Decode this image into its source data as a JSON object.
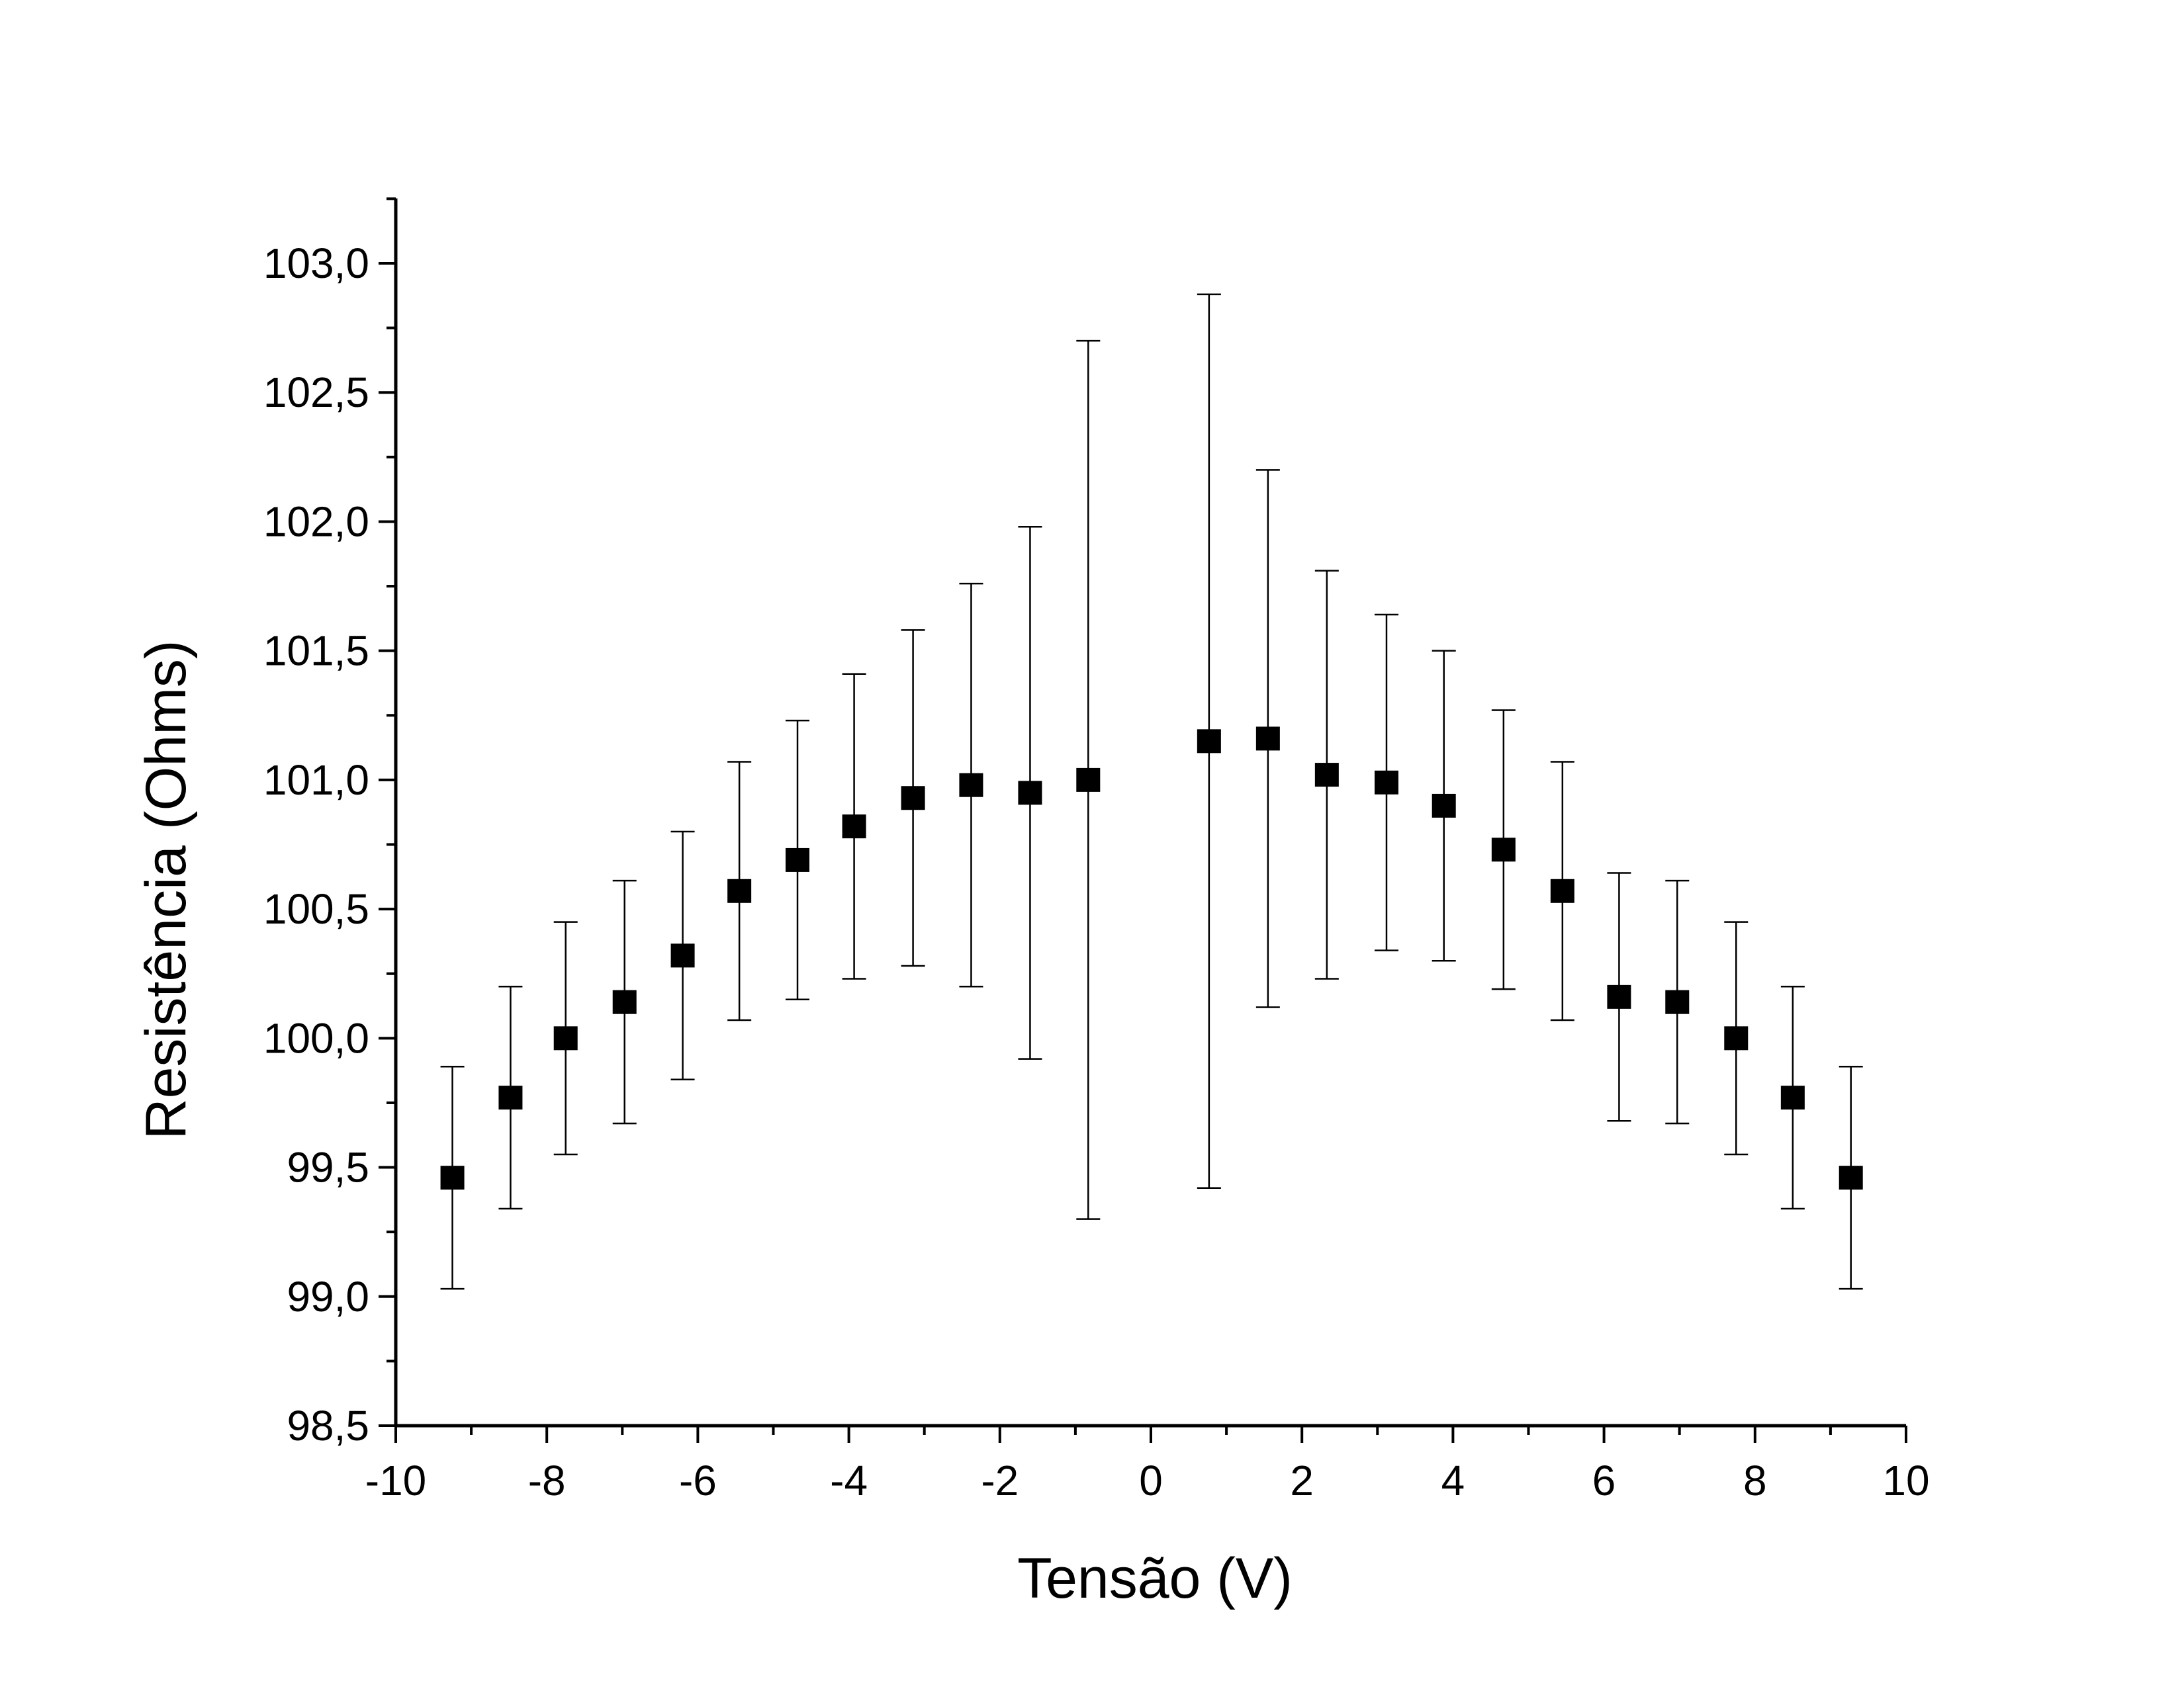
{
  "chart_data": {
    "type": "scatter",
    "title": "",
    "xlabel": "Tensão (V)",
    "ylabel": "Resistência (Ohms)",
    "xlim": [
      -10,
      10
    ],
    "ylim": [
      98.5,
      103.25
    ],
    "x_ticks": [
      -10,
      -8,
      -6,
      -4,
      -2,
      0,
      2,
      4,
      6,
      8,
      10
    ],
    "x_tick_labels": [
      "-10",
      "-8",
      "-6",
      "-4",
      "-2",
      "0",
      "2",
      "4",
      "6",
      "8",
      "10"
    ],
    "y_ticks": [
      98.5,
      99.0,
      99.5,
      100.0,
      100.5,
      101.0,
      101.5,
      102.0,
      102.5,
      103.0
    ],
    "y_tick_labels": [
      "98,5",
      "99,0",
      "99,5",
      "100,0",
      "100,5",
      "101,0",
      "101,5",
      "102,0",
      "102,5",
      "103,0"
    ],
    "grid": false,
    "legend": "none",
    "marker": "square",
    "color": "#000000",
    "series": [
      {
        "x": [
          -9.25,
          -8.48,
          -7.75,
          -6.97,
          -6.2,
          -5.45,
          -4.68,
          -3.93,
          -3.15,
          -2.38,
          -1.6,
          -0.83,
          0.77,
          1.55,
          2.33,
          3.12,
          3.88,
          4.67,
          5.45,
          6.2,
          6.97,
          7.75,
          8.5,
          9.27
        ],
        "y": [
          99.46,
          99.77,
          100.0,
          100.14,
          100.32,
          100.57,
          100.69,
          100.82,
          100.93,
          100.98,
          100.95,
          101.0,
          101.15,
          101.16,
          101.02,
          100.99,
          100.9,
          100.73,
          100.57,
          100.16,
          100.14,
          100.0,
          99.77,
          99.46
        ],
        "y_err_high": [
          99.89,
          100.2,
          100.45,
          100.61,
          100.8,
          101.07,
          101.23,
          101.41,
          101.58,
          101.76,
          101.98,
          102.7,
          102.88,
          102.2,
          101.81,
          101.64,
          101.5,
          101.27,
          101.07,
          100.64,
          100.61,
          100.45,
          100.2,
          99.89
        ],
        "y_err_low": [
          99.03,
          99.34,
          99.55,
          99.67,
          99.84,
          100.07,
          100.15,
          100.23,
          100.28,
          100.2,
          99.92,
          99.3,
          99.42,
          100.12,
          100.23,
          100.34,
          100.3,
          100.19,
          100.07,
          99.68,
          99.67,
          99.55,
          99.34,
          99.03
        ]
      }
    ]
  }
}
